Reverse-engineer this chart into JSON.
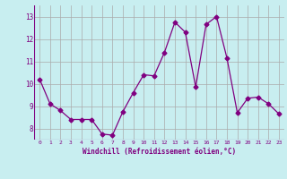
{
  "x": [
    0,
    1,
    2,
    3,
    4,
    5,
    6,
    7,
    8,
    9,
    10,
    11,
    12,
    13,
    14,
    15,
    16,
    17,
    18,
    19,
    20,
    21,
    22,
    23
  ],
  "y": [
    10.2,
    9.1,
    8.8,
    8.4,
    8.4,
    8.4,
    7.75,
    7.7,
    8.75,
    9.6,
    10.4,
    10.35,
    11.4,
    12.75,
    12.3,
    9.85,
    12.65,
    13.0,
    11.15,
    8.7,
    9.35,
    9.4,
    9.1,
    8.65
  ],
  "line_color": "#800080",
  "marker": "D",
  "marker_size": 2.5,
  "bg_color": "#c8eef0",
  "grid_color": "#aaaaaa",
  "xlabel": "Windchill (Refroidissement éolien,°C)",
  "xlabel_color": "#800080",
  "tick_color": "#800080",
  "label_color": "#800080",
  "ylim": [
    7.5,
    13.5
  ],
  "xlim": [
    -0.5,
    23.5
  ],
  "yticks": [
    8,
    9,
    10,
    11,
    12,
    13
  ],
  "xticks": [
    0,
    1,
    2,
    3,
    4,
    5,
    6,
    7,
    8,
    9,
    10,
    11,
    12,
    13,
    14,
    15,
    16,
    17,
    18,
    19,
    20,
    21,
    22,
    23
  ]
}
